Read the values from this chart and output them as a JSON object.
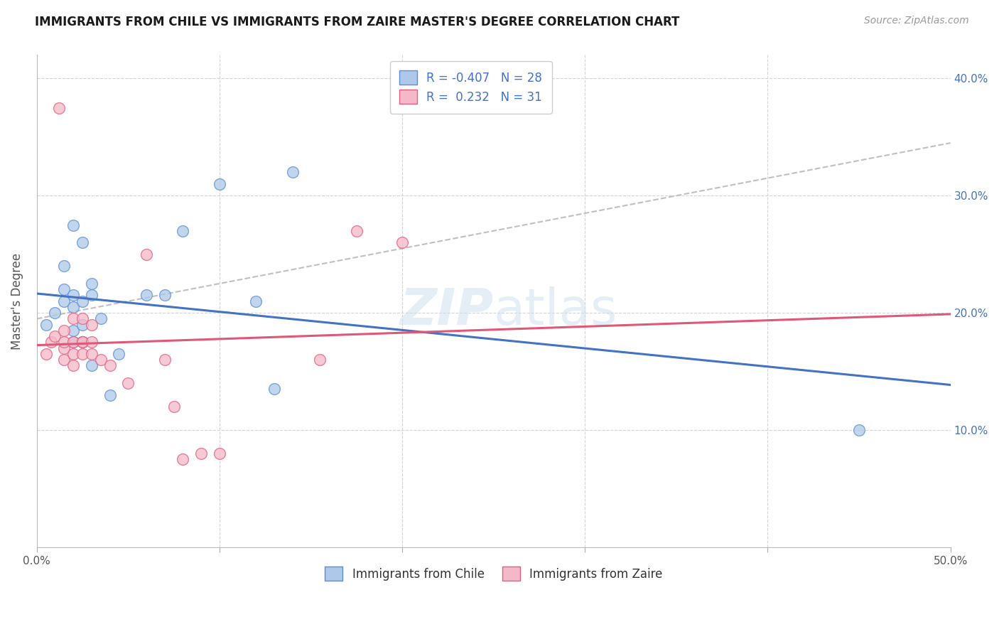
{
  "title": "IMMIGRANTS FROM CHILE VS IMMIGRANTS FROM ZAIRE MASTER'S DEGREE CORRELATION CHART",
  "source": "Source: ZipAtlas.com",
  "ylabel": "Master's Degree",
  "xlim": [
    0.0,
    0.5
  ],
  "ylim": [
    0.0,
    0.42
  ],
  "x_ticks": [
    0.0,
    0.1,
    0.2,
    0.3,
    0.4,
    0.5
  ],
  "x_tick_labels": [
    "0.0%",
    "",
    "",
    "",
    "",
    "50.0%"
  ],
  "y_ticks": [
    0.0,
    0.1,
    0.2,
    0.3,
    0.4
  ],
  "y_tick_labels_right": [
    "",
    "10.0%",
    "20.0%",
    "30.0%",
    "40.0%"
  ],
  "legend_r_chile": "-0.407",
  "legend_n_chile": "28",
  "legend_r_zaire": " 0.232",
  "legend_n_zaire": "31",
  "chile_color": "#adc8e8",
  "zaire_color": "#f5b8c8",
  "chile_edge_color": "#5b8dd9",
  "zaire_edge_color": "#e06080",
  "chile_line_color": "#4472c4",
  "zaire_line_color": "#e05878",
  "trend_line_color": "#c0c0c0",
  "background_color": "#ffffff",
  "grid_color": "#d0d0d0",
  "right_label_color": "#4472c4",
  "watermark_color": "#ccdcee",
  "chile_x": [
    0.005,
    0.01,
    0.015,
    0.015,
    0.015,
    0.02,
    0.02,
    0.02,
    0.02,
    0.02,
    0.025,
    0.025,
    0.025,
    0.025,
    0.03,
    0.03,
    0.03,
    0.035,
    0.04,
    0.045,
    0.06,
    0.07,
    0.08,
    0.1,
    0.12,
    0.13,
    0.14,
    0.45
  ],
  "chile_y": [
    0.19,
    0.2,
    0.21,
    0.22,
    0.24,
    0.175,
    0.185,
    0.205,
    0.215,
    0.275,
    0.175,
    0.19,
    0.21,
    0.26,
    0.155,
    0.215,
    0.225,
    0.195,
    0.13,
    0.165,
    0.215,
    0.215,
    0.27,
    0.31,
    0.21,
    0.135,
    0.32,
    0.1
  ],
  "zaire_x": [
    0.005,
    0.008,
    0.01,
    0.012,
    0.015,
    0.015,
    0.015,
    0.015,
    0.02,
    0.02,
    0.02,
    0.02,
    0.025,
    0.025,
    0.025,
    0.025,
    0.03,
    0.03,
    0.03,
    0.035,
    0.04,
    0.05,
    0.06,
    0.07,
    0.075,
    0.08,
    0.09,
    0.1,
    0.155,
    0.175,
    0.2
  ],
  "zaire_y": [
    0.165,
    0.175,
    0.18,
    0.375,
    0.16,
    0.17,
    0.175,
    0.185,
    0.155,
    0.165,
    0.175,
    0.195,
    0.165,
    0.175,
    0.175,
    0.195,
    0.165,
    0.175,
    0.19,
    0.16,
    0.155,
    0.14,
    0.25,
    0.16,
    0.12,
    0.075,
    0.08,
    0.08,
    0.16,
    0.27,
    0.26
  ]
}
